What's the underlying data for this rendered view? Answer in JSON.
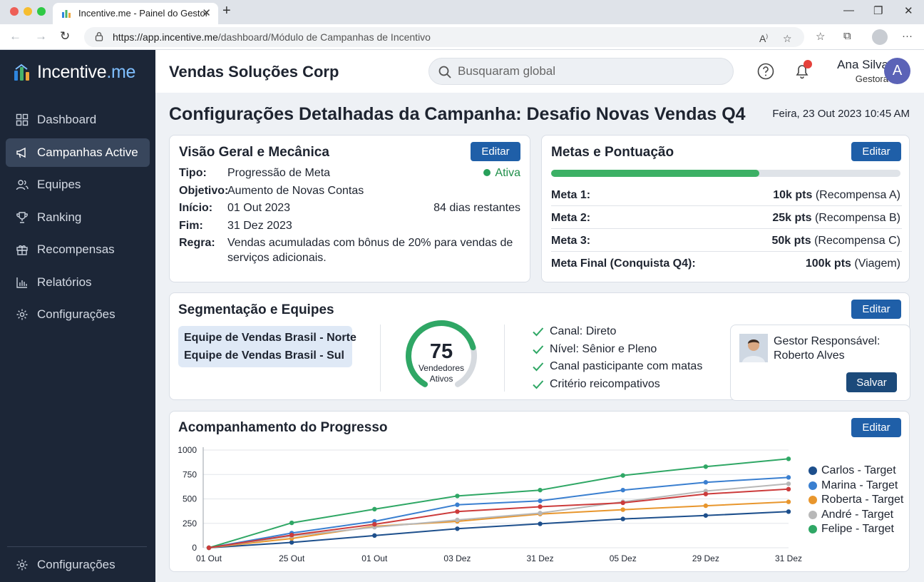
{
  "browser": {
    "tab_title": "Incentive.me - Painel do Gestor",
    "url_origin": "https://app.incentive.me",
    "url_path": "/dashboard/Módulo de Campanhas de Incentivo"
  },
  "sidebar": {
    "brand_main": "Incentive",
    "brand_suffix": ".me",
    "items": [
      {
        "label": "Dashboard",
        "icon": "grid-icon"
      },
      {
        "label": "Campanhas Active",
        "icon": "megaphone-icon",
        "active": true
      },
      {
        "label": "Equipes",
        "icon": "users-icon"
      },
      {
        "label": "Ranking",
        "icon": "trophy-icon"
      },
      {
        "label": "Recompensas",
        "icon": "gift-icon"
      },
      {
        "label": "Relatórios",
        "icon": "bar-chart-icon"
      },
      {
        "label": "Configurações",
        "icon": "gear-icon"
      }
    ],
    "footer_label": "Configurações"
  },
  "header": {
    "org_name": "Vendas Soluções Corp",
    "search_placeholder": "Busquaram global",
    "user_name": "Ana Silva",
    "user_role": "Gestora",
    "avatar_initial": "A"
  },
  "page": {
    "title": "Configurações Detalhadas da Campanha: Desafio Novas Vendas Q4",
    "datetime": "Feira, 23 Out 2023 10:45 AM"
  },
  "overview": {
    "title": "Visão Geral e Mecânica",
    "edit_label": "Editar",
    "status": "Ativa",
    "days_left": "84 dias restantes",
    "fields": [
      {
        "key": "Tipo:",
        "value": "Progressão de Meta"
      },
      {
        "key": "Objetivo:",
        "value": "Aumento de Novas Contas"
      },
      {
        "key": "Início:",
        "value": "01 Out 2023"
      },
      {
        "key": "Fim:",
        "value": "31 Dez 2023"
      },
      {
        "key": "Regra:",
        "value": "Vendas acumuladas com bônus de 20% para vendas de",
        "value2": "serviços adicionais."
      }
    ]
  },
  "goals": {
    "title": "Metas e Pontuação",
    "edit_label": "Editar",
    "progress_fraction": 0.595,
    "rows": [
      {
        "name": "Meta 1:",
        "points": "10k pts",
        "reward": "(Recompensa A)"
      },
      {
        "name": "Meta 2:",
        "points": "25k pts",
        "reward": "(Recompensa B)"
      },
      {
        "name": "Meta 3:",
        "points": "50k pts",
        "reward": "(Recompensa C)"
      },
      {
        "name": "Meta Final (Conquista Q4):",
        "points": "100k pts",
        "reward": "(Viagem)"
      }
    ]
  },
  "segmentation": {
    "title": "Segmentação e Equipes",
    "edit_label": "Editar",
    "teams": [
      "Equipe de Vendas Brasil - Norte",
      "Equipe de Vendas Brasil - Sul"
    ],
    "gauge_value": "75",
    "gauge_fraction": 0.75,
    "gauge_label_1": "Vendedores",
    "gauge_label_2": "Ativos",
    "criteria": [
      "Canal: Direto",
      "Nível: Sênior e Pleno",
      "Canal pasticipante com matas",
      "Critério reicompativos"
    ],
    "manager_label": "Gestor Responsável:",
    "manager_name": "Roberto Alves",
    "save_label": "Salvar"
  },
  "progress_chart": {
    "title": "Acompanhamento do Progresso",
    "edit_label": "Editar"
  },
  "chart_data": {
    "type": "line",
    "title": "Acompanhamento do Progresso",
    "xlabel": "",
    "ylabel": "",
    "ylim": [
      0,
      1000
    ],
    "yticks": [
      "0",
      "250",
      "500",
      "750",
      "1000"
    ],
    "x_ticks": [
      "01 Out",
      "25 Out",
      "01 Out",
      "03 Dez",
      "31 Dez",
      "05 Dez",
      "29 Dez",
      "31 Dez"
    ],
    "grid": true,
    "legend_position": "right",
    "series": [
      {
        "name": "Carlos - Target",
        "color": "#1d4f8c",
        "values": [
          0,
          55,
          125,
          195,
          245,
          295,
          330,
          370
        ]
      },
      {
        "name": "Marina - Target",
        "color": "#3a7fd0",
        "values": [
          0,
          150,
          270,
          440,
          480,
          590,
          670,
          720
        ]
      },
      {
        "name": "Roberta - Target",
        "color": "#e8962d",
        "values": [
          0,
          95,
          220,
          270,
          345,
          390,
          430,
          470
        ]
      },
      {
        "name": "André - Target",
        "color": "#b8b8b8",
        "values": [
          0,
          120,
          210,
          285,
          355,
          470,
          580,
          655
        ]
      },
      {
        "name": "Felipe - Target",
        "color": "#2fa765",
        "values": [
          0,
          255,
          395,
          530,
          590,
          740,
          830,
          910
        ]
      },
      {
        "name": "",
        "color": "#cc3b3b",
        "values": [
          0,
          130,
          240,
          370,
          420,
          460,
          550,
          600
        ]
      }
    ]
  }
}
